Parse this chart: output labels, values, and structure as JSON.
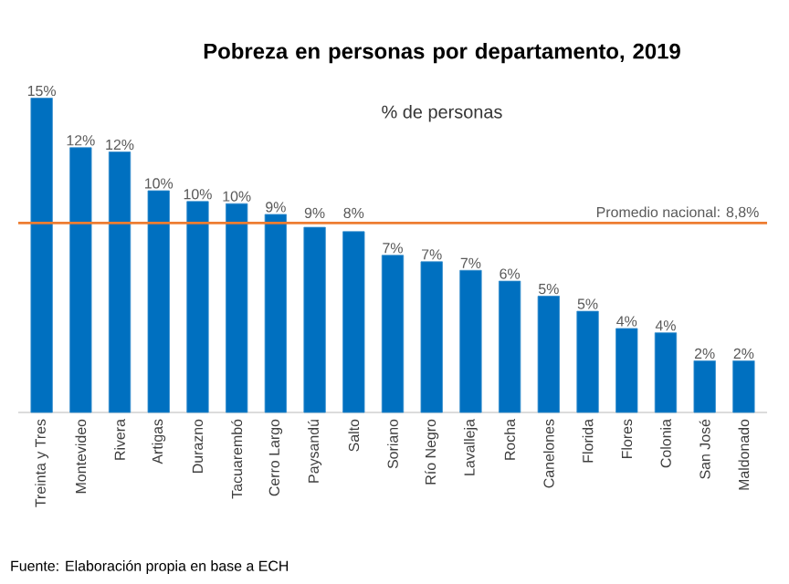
{
  "chart_data": {
    "type": "bar",
    "title": "Pobreza en personas por departamento, 2019",
    "subtitle": "% de personas",
    "categories": [
      "Treinta y Tres",
      "Montevideo",
      "Rivera",
      "Artigas",
      "Durazno",
      "Tacuarembó",
      "Cerro Largo",
      "Paysandú",
      "Salto",
      "Soriano",
      "Río Negro",
      "Lavalleja",
      "Rocha",
      "Canelones",
      "Florida",
      "Flores",
      "Colonia",
      "San José",
      "Maldonado"
    ],
    "values": [
      14.6,
      12.3,
      12.1,
      10.3,
      9.8,
      9.7,
      9.2,
      8.6,
      8.4,
      7.3,
      7.0,
      6.6,
      6.1,
      5.4,
      4.7,
      3.9,
      3.7,
      2.4,
      2.4
    ],
    "value_labels": [
      "15%",
      "12%",
      "12%",
      "10%",
      "10%",
      "10%",
      "9%",
      "9%",
      "8%",
      "7%",
      "7%",
      "7%",
      "6%",
      "5%",
      "5%",
      "4%",
      "4%",
      "2%",
      "2%"
    ],
    "color": "#0070c0",
    "ref_lines": [
      {
        "axis": "y",
        "value": 8.8,
        "label": "Promedio nacional: 8,8%",
        "color": "#ed7d31"
      }
    ],
    "annotations": [
      "Fuente: Elaboración propia en base a ECH"
    ]
  }
}
